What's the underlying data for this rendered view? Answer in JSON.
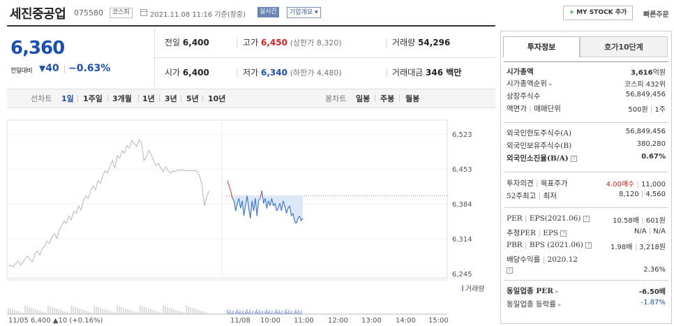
{
  "header": {
    "title": "세진중공업",
    "code": "075580",
    "market_tag": "코스피",
    "date_text": "2021.11.08 11:16 기준(장중)",
    "realtime_tag": "실시간",
    "company_tag": "기업개요 ▾",
    "mystock_label": "MY STOCK 추가",
    "quick_order_label": "빠른주문"
  },
  "price": {
    "current": "6,360",
    "change_label": "전일대비",
    "change": "40",
    "change_pct": "−0.63%",
    "color_down": "#1c4fb5",
    "color_up": "#e02020"
  },
  "quote": {
    "prev_label": "전일",
    "prev": "6,400",
    "high_label": "고가",
    "high": "6,450",
    "upper_limit": "(상한가 8,320)",
    "volume_label": "거래량",
    "volume": "54,296",
    "open_label": "시가",
    "open": "6,400",
    "low_label": "저가",
    "low": "6,340",
    "lower_limit": "(하한가 4,480)",
    "amount_label": "거래대금",
    "amount": "346 백만"
  },
  "period_tabs": {
    "line_label": "선차트",
    "items": [
      "1일",
      "1주일",
      "3개월",
      "1년",
      "3년",
      "5년",
      "10년"
    ],
    "selected": "1일",
    "candle_label": "봉차트",
    "candle_items": [
      "일봉",
      "주봉",
      "월봉"
    ]
  },
  "chart_data": {
    "type": "line",
    "yticks": [
      "6,523",
      "6,453",
      "6,384",
      "6,314",
      "6,245"
    ],
    "ylim": [
      6245,
      6523
    ],
    "prev_close": 6400,
    "x_labels": [
      "11/05",
      "11/08",
      "10:00",
      "11:00",
      "12:00",
      "13:00",
      "14:00",
      "15:00"
    ],
    "prev_day_summary": "6,400 ▲10 (+0.16%)",
    "prev_day_date": "11/05",
    "volume_legend": "거래량",
    "series": [
      {
        "segment": "prev_day",
        "values": [
          6260,
          6262,
          6258,
          6265,
          6270,
          6262,
          6268,
          6275,
          6280,
          6272,
          6268,
          6285,
          6290,
          6282,
          6295,
          6300,
          6310,
          6305,
          6318,
          6325,
          6315,
          6332,
          6340,
          6350,
          6345,
          6360,
          6352,
          6370,
          6365,
          6380,
          6372,
          6390,
          6400,
          6395,
          6410,
          6420,
          6412,
          6430,
          6425,
          6440,
          6450,
          6445,
          6460,
          6470,
          6455,
          6480,
          6475,
          6490,
          6485,
          6500,
          6495,
          6510,
          6505,
          6498,
          6512,
          6505,
          6470,
          6478,
          6490,
          6482,
          6470,
          6460,
          6465,
          6455,
          6448,
          6458,
          6450,
          6445,
          6450,
          6448,
          6452,
          6450,
          6452,
          6450,
          6450,
          6450,
          6450,
          6450,
          6448,
          6440,
          6420,
          6380,
          6400,
          6410
        ]
      },
      {
        "segment": "today",
        "values": [
          6430,
          6420,
          6410,
          6395,
          6390,
          6370,
          6385,
          6395,
          6375,
          6390,
          6360,
          6380,
          6400,
          6375,
          6355,
          6390,
          6370,
          6395,
          6360,
          6390,
          6395,
          6410,
          6385,
          6395,
          6375,
          6390,
          6380,
          6395,
          6380,
          6385,
          6370,
          6375,
          6385,
          6370,
          6390,
          6380,
          6365,
          6375,
          6380,
          6360,
          6365,
          6350,
          6345,
          6355,
          6360,
          6350,
          6355
        ]
      }
    ]
  },
  "right_panel": {
    "tabs": [
      "투자정보",
      "호가10단계"
    ],
    "selected_tab": "투자정보",
    "market_cap_label": "시가총액",
    "market_cap": "3,616",
    "market_cap_unit": "억원",
    "market_cap_rank_label": "시가총액순위",
    "market_cap_rank": "코스피 432위",
    "shares_label": "상장주식수",
    "shares": "56,849,456",
    "par_label": "액면가",
    "par_sep": "매매단위",
    "par_value": "500원",
    "trade_unit": "1주",
    "foreign_limit_label": "외국인한도주식수(A)",
    "foreign_limit": "56,849,456",
    "foreign_hold_label": "외국인보유주식수(B)",
    "foreign_hold": "380,280",
    "foreign_ratio_label": "외국인소진율(B/A)",
    "foreign_ratio": "0.67%",
    "opinion_label": "투자의견",
    "target_label": "목표주가",
    "opinion_value": "4.00매수",
    "target_value": "11,000",
    "w52_label": "52주최고",
    "w52_low_label": "최저",
    "w52_high": "8,120",
    "w52_low": "4,560",
    "per_label": "PER",
    "eps_label": "EPS(2021.06)",
    "per": "10.58배",
    "eps": "601원",
    "est_per_label": "추정PER",
    "est_eps_label": "EPS",
    "est_per": "N/A",
    "est_eps": "N/A",
    "pbr_label": "PBR",
    "bps_label": "BPS (2021.06)",
    "pbr": "1.98배",
    "bps": "3,218원",
    "div_label": "배당수익률",
    "div_date": "2020.12",
    "div": "2.36%",
    "sector_per_label": "동일업종 PER",
    "sector_per": "-6.50배",
    "sector_rate_label": "동일업종 등락률",
    "sector_rate": "-1.87%"
  }
}
